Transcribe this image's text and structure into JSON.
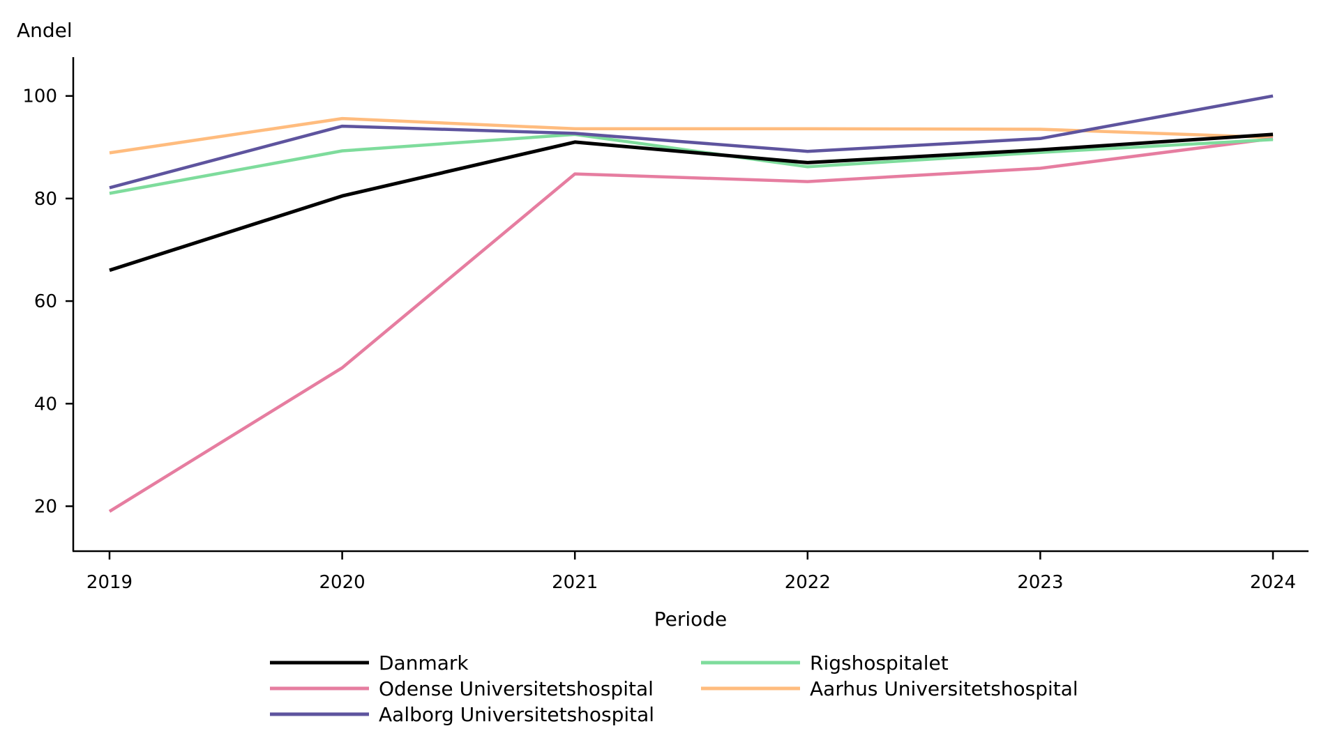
{
  "chart_data": {
    "type": "line",
    "xlabel": "Periode",
    "ylabel": "Andel",
    "x": [
      "2019",
      "2020",
      "2021",
      "2022",
      "2023",
      "2024"
    ],
    "yticks": [
      20,
      40,
      60,
      80,
      100
    ],
    "ylim": [
      11,
      107.5
    ],
    "grid": false,
    "legend_position": "bottom",
    "series": [
      {
        "name": "Danmark",
        "color": "#000000",
        "values": [
          66,
          80.5,
          91,
          87,
          89.5,
          92.5
        ]
      },
      {
        "name": "Rigshospitalet",
        "color": "#7edc9c",
        "values": [
          81,
          89.3,
          92.5,
          86.2,
          89,
          91.5
        ]
      },
      {
        "name": "Odense Universitetshospital",
        "color": "#e67da0",
        "values": [
          19,
          47,
          84.8,
          83.3,
          85.9,
          91.7
        ]
      },
      {
        "name": "Aarhus Universitetshospital",
        "color": "#ffbc7e",
        "values": [
          88.9,
          95.6,
          93.6,
          93.6,
          93.5,
          91.9
        ]
      },
      {
        "name": "Aalborg Universitetshospital",
        "color": "#5e549e",
        "values": [
          82.1,
          94.1,
          92.7,
          89.2,
          91.7,
          100
        ]
      }
    ]
  }
}
